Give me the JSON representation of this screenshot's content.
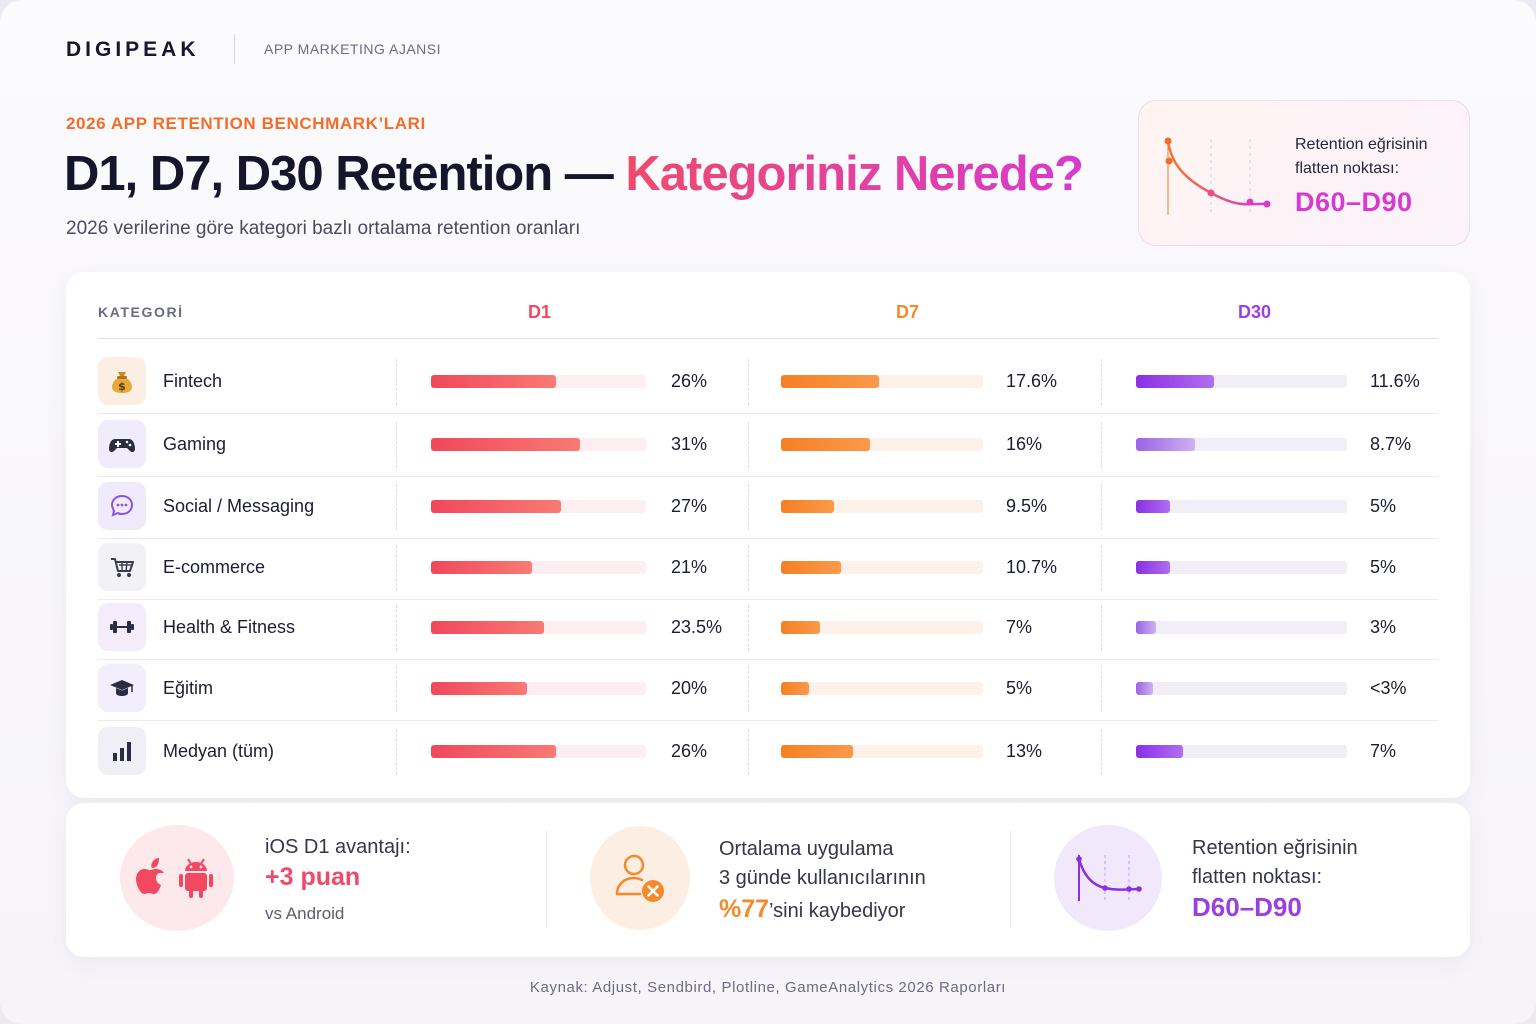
{
  "header": {
    "brand": "DIGIPEAK",
    "brand_tagline": "APP MARKETING AJANSI",
    "eyebrow": "2026 APP RETENTION BENCHMARK’LARI",
    "title_main": "D1, D7, D30 Retention — ",
    "title_accent": "Kategoriniz Nerede?",
    "subtitle": "2026 verilerine göre kategori bazlı ortalama retention oranları"
  },
  "flatten_card": {
    "label": "Retention eğrisinin flatten noktası:",
    "value": "D60–D90"
  },
  "table": {
    "col_category": "KATEGORİ",
    "col_d1": "D1",
    "col_d7": "D7",
    "col_d30": "D30"
  },
  "colors": {
    "d1": "#ef4a5e",
    "d7": "#f58a2c",
    "d30": "#9b3fe0",
    "accent_pink": "#d63ad0"
  },
  "chart_data": {
    "type": "bar",
    "categories": [
      "Fintech",
      "Gaming",
      "Social / Messaging",
      "E-commerce",
      "Health & Fitness",
      "Eğitim",
      "Medyan (tüm)"
    ],
    "icons": [
      "money-bag-icon",
      "gamepad-icon",
      "chat-bubble-icon",
      "shopping-cart-icon",
      "dumbbell-icon",
      "graduation-cap-icon",
      "bar-chart-icon"
    ],
    "ylim": [
      0,
      50
    ],
    "series": [
      {
        "name": "D1",
        "values": [
          26,
          31,
          27,
          21,
          23.5,
          20,
          26
        ],
        "labels": [
          "26%",
          "31%",
          "27%",
          "21%",
          "23.5%",
          "20%",
          "26%"
        ]
      },
      {
        "name": "D7",
        "values": [
          17.6,
          16,
          9.5,
          10.7,
          7,
          5,
          13
        ],
        "labels": [
          "17.6%",
          "16%",
          "9.5%",
          "10.7%",
          "7%",
          "5%",
          "13%"
        ]
      },
      {
        "name": "D30",
        "values": [
          11.6,
          8.7,
          5,
          5,
          3,
          2.5,
          7
        ],
        "labels": [
          "11.6%",
          "8.7%",
          "5%",
          "5%",
          "3%",
          "<3%",
          "7%"
        ]
      }
    ]
  },
  "stats": {
    "ios": {
      "line1": "iOS D1 avantajı:",
      "value": "+3 puan",
      "line3": "vs Android"
    },
    "loss": {
      "line1": "Ortalama uygulama",
      "line2": "3 günde kullanıcılarının",
      "value": "%77",
      "suffix": "’sini kaybediyor"
    },
    "flatten": {
      "line1": "Retention eğrisinin",
      "line2": "flatten noktası:",
      "value": "D60–D90"
    }
  },
  "footer": {
    "source": "Kaynak: Adjust, Sendbird, Plotline, GameAnalytics 2026 Raporları"
  }
}
